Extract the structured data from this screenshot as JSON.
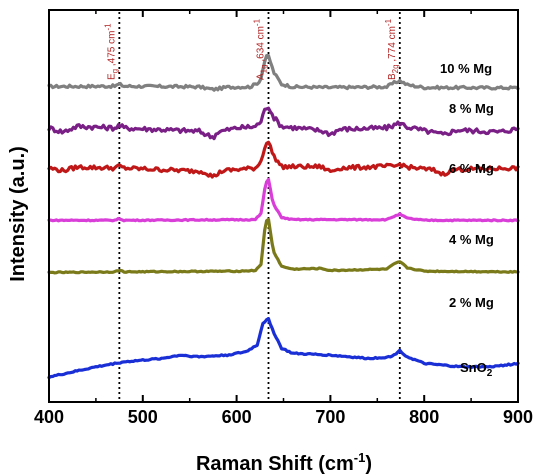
{
  "chart_data": {
    "type": "line",
    "xlabel": "Raman Shift (cm",
    "xlabel_sup": "-1",
    "xlabel_close": ")",
    "ylabel": "Intensity (a.u.)",
    "xlim": [
      400,
      900
    ],
    "xticks": [
      400,
      500,
      600,
      700,
      800,
      900
    ],
    "grid": false,
    "reference_lines": [
      {
        "x": 475,
        "label_main": "E",
        "label_sub": "g",
        "label_rest": " ,475 cm",
        "label_sup": "-1"
      },
      {
        "x": 634,
        "label_main": "A",
        "label_sub": "1g",
        "label_rest": " ,634 cm",
        "label_sup": "-1"
      },
      {
        "x": 774,
        "label_main": "B",
        "label_sub": "2g",
        "label_rest": " ,774 cm",
        "label_sup": "-1"
      }
    ],
    "series": [
      {
        "name": "10 % Mg",
        "name_main": "10 % Mg",
        "name_sub": "",
        "color": "#808080",
        "baseline": 0.857,
        "noise": 0.004,
        "points": [
          [
            400,
            0.005
          ],
          [
            470,
            0.006
          ],
          [
            475,
            0.012
          ],
          [
            480,
            0.006
          ],
          [
            560,
            0.004
          ],
          [
            575,
            -0.004
          ],
          [
            590,
            0.003
          ],
          [
            615,
            0.004
          ],
          [
            625,
            0.02
          ],
          [
            631,
            0.092
          ],
          [
            634,
            0.095
          ],
          [
            640,
            0.045
          ],
          [
            648,
            0.012
          ],
          [
            660,
            0.004
          ],
          [
            700,
            0.002
          ],
          [
            760,
            0.004
          ],
          [
            768,
            0.016
          ],
          [
            774,
            0.022
          ],
          [
            782,
            0.01
          ],
          [
            800,
            0.002
          ],
          [
            900,
            0.001
          ]
        ]
      },
      {
        "name": "8 % Mg",
        "name_main": "8 % Mg",
        "name_sub": "",
        "color": "#7a1f86",
        "baseline": 0.739,
        "noise": 0.007,
        "points": [
          [
            400,
            0.0
          ],
          [
            415,
            -0.012
          ],
          [
            430,
            0.005
          ],
          [
            470,
            0.0
          ],
          [
            475,
            0.008
          ],
          [
            480,
            0.0
          ],
          [
            560,
            -0.01
          ],
          [
            570,
            -0.022
          ],
          [
            575,
            -0.028
          ],
          [
            580,
            -0.012
          ],
          [
            600,
            0.0
          ],
          [
            620,
            0.004
          ],
          [
            626,
            0.02
          ],
          [
            631,
            0.06
          ],
          [
            634,
            0.064
          ],
          [
            640,
            0.03
          ],
          [
            648,
            0.005
          ],
          [
            690,
            -0.008
          ],
          [
            700,
            -0.018
          ],
          [
            710,
            -0.004
          ],
          [
            760,
            0.0
          ],
          [
            774,
            0.015
          ],
          [
            782,
            0.003
          ],
          [
            800,
            -0.008
          ],
          [
            820,
            -0.02
          ],
          [
            835,
            -0.006
          ],
          [
            880,
            -0.012
          ],
          [
            900,
            -0.002
          ]
        ]
      },
      {
        "name": "6 % Mg",
        "name_main": "6 % Mg",
        "name_sub": "",
        "color": "#c01818",
        "baseline": 0.62,
        "noise": 0.006,
        "points": [
          [
            400,
            0.0
          ],
          [
            415,
            -0.008
          ],
          [
            430,
            0.003
          ],
          [
            470,
            0.0
          ],
          [
            475,
            0.006
          ],
          [
            480,
            0.0
          ],
          [
            565,
            -0.01
          ],
          [
            575,
            -0.026
          ],
          [
            585,
            -0.008
          ],
          [
            620,
            0.0
          ],
          [
            626,
            0.02
          ],
          [
            631,
            0.074
          ],
          [
            634,
            0.076
          ],
          [
            640,
            0.034
          ],
          [
            648,
            0.004
          ],
          [
            690,
            0.004
          ],
          [
            700,
            -0.01
          ],
          [
            710,
            0.0
          ],
          [
            770,
            0.006
          ],
          [
            774,
            0.012
          ],
          [
            782,
            0.003
          ],
          [
            810,
            -0.006
          ],
          [
            820,
            -0.018
          ],
          [
            832,
            -0.004
          ],
          [
            900,
            0.0
          ]
        ]
      },
      {
        "name": "4 % Mg",
        "name_main": "4 % Mg",
        "name_sub": "",
        "color": "#d93ed9",
        "baseline": 0.465,
        "noise": 0.0015,
        "points": [
          [
            400,
            0.0
          ],
          [
            470,
            0.0
          ],
          [
            475,
            0.005
          ],
          [
            480,
            0.0
          ],
          [
            620,
            0.002
          ],
          [
            626,
            0.02
          ],
          [
            631,
            0.11
          ],
          [
            634,
            0.12
          ],
          [
            639,
            0.05
          ],
          [
            648,
            0.008
          ],
          [
            660,
            0.002
          ],
          [
            760,
            0.002
          ],
          [
            768,
            0.012
          ],
          [
            774,
            0.018
          ],
          [
            782,
            0.006
          ],
          [
            800,
            0.0
          ],
          [
            900,
            0.0
          ]
        ]
      },
      {
        "name": "2 % Mg",
        "name_main": "2 % Mg",
        "name_sub": "",
        "color": "#7a7a1a",
        "baseline": 0.31,
        "noise": 0.0015,
        "points": [
          [
            400,
            0.0
          ],
          [
            470,
            0.002
          ],
          [
            475,
            0.007
          ],
          [
            480,
            0.002
          ],
          [
            600,
            0.004
          ],
          [
            620,
            0.006
          ],
          [
            626,
            0.025
          ],
          [
            631,
            0.15
          ],
          [
            634,
            0.158
          ],
          [
            639,
            0.065
          ],
          [
            648,
            0.018
          ],
          [
            660,
            0.01
          ],
          [
            690,
            0.012
          ],
          [
            700,
            0.006
          ],
          [
            760,
            0.01
          ],
          [
            768,
            0.025
          ],
          [
            774,
            0.032
          ],
          [
            782,
            0.014
          ],
          [
            800,
            0.004
          ],
          [
            900,
            0.002
          ]
        ]
      },
      {
        "name": "SnO2",
        "name_main": "SnO",
        "name_sub": "2",
        "color": "#1a2fd6",
        "baseline": 0.0,
        "noise": 0.002,
        "points": [
          [
            400,
            0.0
          ],
          [
            420,
            0.012
          ],
          [
            450,
            0.03
          ],
          [
            480,
            0.045
          ],
          [
            520,
            0.055
          ],
          [
            540,
            0.065
          ],
          [
            560,
            0.06
          ],
          [
            590,
            0.065
          ],
          [
            610,
            0.075
          ],
          [
            622,
            0.095
          ],
          [
            628,
            0.16
          ],
          [
            634,
            0.172
          ],
          [
            640,
            0.13
          ],
          [
            648,
            0.085
          ],
          [
            660,
            0.07
          ],
          [
            700,
            0.065
          ],
          [
            740,
            0.055
          ],
          [
            765,
            0.06
          ],
          [
            774,
            0.078
          ],
          [
            782,
            0.06
          ],
          [
            800,
            0.04
          ],
          [
            840,
            0.03
          ],
          [
            870,
            0.03
          ],
          [
            900,
            0.04
          ]
        ]
      }
    ]
  }
}
